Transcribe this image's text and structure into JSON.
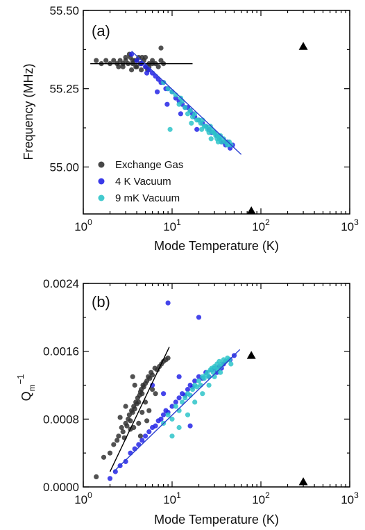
{
  "colors": {
    "exchange_gas": "#333333",
    "vacuum_4k": "#2424e6",
    "vacuum_9mk": "#2ec4c9",
    "fit_black": "#000000",
    "fit_blue": "#2b3fd0",
    "marker": "#000000",
    "axes": "#000000"
  },
  "chart_data": [
    {
      "type": "scatter",
      "panel_label": "(a)",
      "xlabel": "Mode Temperature (K)",
      "ylabel": "Frequency (MHz)",
      "xscale": "log",
      "xlim": [
        1,
        1000
      ],
      "ylim": [
        54.85,
        55.5
      ],
      "yticks": [
        "55.00",
        "55.25",
        "55.50"
      ],
      "xticks": [
        {
          "base": "10",
          "exp": "0"
        },
        {
          "base": "10",
          "exp": "1"
        },
        {
          "base": "10",
          "exp": "2"
        },
        {
          "base": "10",
          "exp": "3"
        }
      ],
      "legend_position": "lower-left",
      "series": [
        {
          "name": "Exchange Gas",
          "color_key": "exchange_gas",
          "x": [
            1.4,
            1.6,
            1.8,
            2.0,
            2.2,
            2.4,
            2.6,
            2.8,
            3.0,
            3.2,
            3.4,
            3.6,
            3.8,
            4.0,
            4.2,
            4.5,
            4.8,
            5.1,
            5.5,
            6.0,
            6.5,
            7.0,
            7.5,
            8.0,
            2.5,
            3.0,
            3.5,
            4.0,
            4.5,
            5.0,
            5.5,
            6.0,
            3.3,
            3.9,
            4.6,
            5.3,
            2.8,
            3.6,
            4.4,
            7.5
          ],
          "y": [
            55.34,
            55.33,
            55.34,
            55.33,
            55.34,
            55.33,
            55.34,
            55.32,
            55.34,
            55.33,
            55.35,
            55.33,
            55.34,
            55.32,
            55.35,
            55.33,
            55.34,
            55.32,
            55.33,
            55.34,
            55.33,
            55.32,
            55.34,
            55.33,
            55.32,
            55.35,
            55.31,
            55.34,
            55.31,
            55.35,
            55.32,
            55.33,
            55.36,
            55.32,
            55.35,
            55.31,
            55.33,
            55.34,
            55.33,
            55.38
          ]
        },
        {
          "name": "4 K Vacuum",
          "color_key": "vacuum_4k",
          "x": [
            3.5,
            4.0,
            4.5,
            5.0,
            5.5,
            6.0,
            6.5,
            7.0,
            7.5,
            8.0,
            8.5,
            9.0,
            10,
            11,
            12,
            13,
            14,
            15,
            16,
            17,
            18,
            20,
            22,
            24,
            26,
            28,
            30,
            32,
            34,
            36,
            38,
            40,
            42,
            45,
            48,
            5.2,
            6.8,
            8.8,
            12.5,
            19
          ],
          "y": [
            55.36,
            55.34,
            55.33,
            55.32,
            55.31,
            55.3,
            55.29,
            55.28,
            55.27,
            55.27,
            55.25,
            55.25,
            55.24,
            55.22,
            55.21,
            55.2,
            55.19,
            55.19,
            55.18,
            55.17,
            55.16,
            55.15,
            55.14,
            55.13,
            55.12,
            55.11,
            55.11,
            55.1,
            55.09,
            55.08,
            55.08,
            55.07,
            55.08,
            55.06,
            55.07,
            55.3,
            55.24,
            55.2,
            55.17,
            55.12
          ]
        },
        {
          "name": "9 mK Vacuum",
          "color_key": "vacuum_9mk",
          "x": [
            8,
            9,
            10,
            11,
            12,
            13,
            14,
            15,
            16,
            17,
            18,
            19,
            20,
            21,
            22,
            23,
            24,
            25,
            26,
            27,
            28,
            29,
            30,
            31,
            32,
            33,
            34,
            35,
            36,
            38,
            40,
            42,
            44,
            46,
            9.5,
            12.5,
            16.5,
            21.5,
            27.5,
            33
          ],
          "y": [
            55.27,
            55.25,
            55.24,
            55.23,
            55.2,
            55.21,
            55.19,
            55.17,
            55.18,
            55.16,
            55.17,
            55.15,
            55.15,
            55.14,
            55.15,
            55.13,
            55.13,
            55.12,
            55.11,
            55.13,
            55.12,
            55.11,
            55.11,
            55.1,
            55.09,
            55.1,
            55.09,
            55.1,
            55.08,
            55.09,
            55.08,
            55.07,
            55.08,
            55.07,
            55.12,
            55.22,
            55.14,
            55.12,
            55.09,
            55.08
          ]
        }
      ],
      "fits": [
        {
          "color_key": "fit_black",
          "x": [
            1.2,
            17
          ],
          "y": [
            55.33,
            55.33
          ]
        },
        {
          "color_key": "fit_blue",
          "x": [
            3.5,
            60
          ],
          "y": [
            55.37,
            55.04
          ]
        }
      ],
      "markers": [
        {
          "shape": "triangle",
          "x": 300,
          "y": 55.385
        },
        {
          "shape": "triangle",
          "x": 78,
          "y": 54.86
        }
      ]
    },
    {
      "type": "scatter",
      "panel_label": "(b)",
      "xlabel": "Mode Temperature (K)",
      "ylabel_base": "Q",
      "ylabel_sub": "m",
      "ylabel_sup": "−1",
      "xscale": "log",
      "xlim": [
        1,
        1000
      ],
      "ylim": [
        0,
        0.0024
      ],
      "yticks": [
        "0.0000",
        "0.0008",
        "0.0016",
        "0.0024"
      ],
      "xticks": [
        {
          "base": "10",
          "exp": "0"
        },
        {
          "base": "10",
          "exp": "1"
        },
        {
          "base": "10",
          "exp": "2"
        },
        {
          "base": "10",
          "exp": "3"
        }
      ],
      "series": [
        {
          "name": "Exchange Gas",
          "color_key": "exchange_gas",
          "x": [
            1.4,
            1.7,
            2.0,
            2.2,
            2.4,
            2.5,
            2.7,
            2.8,
            3.0,
            3.1,
            3.2,
            3.3,
            3.4,
            3.5,
            3.6,
            3.7,
            3.8,
            3.9,
            4.0,
            4.1,
            4.2,
            4.3,
            4.4,
            4.5,
            4.6,
            4.7,
            4.8,
            5.0,
            5.2,
            5.4,
            5.6,
            5.8,
            6.0,
            6.4,
            6.8,
            7.2,
            7.6,
            8.0,
            8.5,
            9.0,
            2.6,
            3.0,
            3.4,
            3.8,
            4.2,
            4.6,
            5.0,
            5.5,
            6.0,
            3.6,
            4.4,
            5.2,
            6.5,
            2.9,
            3.7
          ],
          "y": [
            0.00012,
            0.00035,
            0.0004,
            0.0005,
            0.00055,
            0.0006,
            0.0007,
            0.00065,
            0.00075,
            0.00072,
            0.0008,
            0.00085,
            0.00078,
            0.0009,
            0.00088,
            0.00095,
            0.00092,
            0.001,
            0.00098,
            0.00105,
            0.001,
            0.00108,
            0.00112,
            0.00115,
            0.0011,
            0.0012,
            0.00118,
            0.00122,
            0.00125,
            0.0013,
            0.00128,
            0.00135,
            0.00132,
            0.0014,
            0.00138,
            0.00142,
            0.00145,
            0.00148,
            0.0015,
            0.00152,
            0.00082,
            0.00095,
            0.00068,
            0.0012,
            0.00075,
            0.00088,
            0.001,
            0.0009,
            0.00115,
            0.0013,
            0.0006,
            0.00078,
            0.0011,
            0.00058,
            0.0007
          ]
        },
        {
          "name": "4 K Vacuum",
          "color_key": "vacuum_4k",
          "x": [
            2.0,
            2.3,
            2.6,
            3.0,
            3.4,
            3.8,
            4.2,
            4.6,
            5.0,
            5.5,
            6.0,
            6.5,
            7.0,
            7.5,
            8.0,
            8.5,
            9.0,
            10,
            11,
            12,
            13,
            14,
            15,
            16,
            17,
            18,
            20,
            22,
            24,
            26,
            28,
            30,
            32,
            34,
            36,
            38,
            40,
            45,
            50,
            9.0,
            20,
            6.0,
            8.0,
            12,
            16
          ],
          "y": [
            0.0001,
            0.00018,
            0.00025,
            0.0003,
            0.0004,
            0.00045,
            0.0005,
            0.00055,
            0.0006,
            0.00065,
            0.0007,
            0.00072,
            0.00078,
            0.0008,
            0.00085,
            0.0009,
            0.00088,
            0.00095,
            0.001,
            0.00105,
            0.0011,
            0.00108,
            0.00115,
            0.0012,
            0.00118,
            0.00125,
            0.0013,
            0.00128,
            0.00135,
            0.0013,
            0.00138,
            0.0014,
            0.00135,
            0.00142,
            0.0014,
            0.00145,
            0.00148,
            0.0015,
            0.00155,
            0.00217,
            0.002,
            0.0012,
            0.0011,
            0.0013,
            0.00072
          ]
        },
        {
          "name": "9 mK Vacuum",
          "color_key": "vacuum_9mk",
          "x": [
            8,
            9,
            10,
            11,
            12,
            13,
            14,
            15,
            16,
            17,
            18,
            19,
            20,
            21,
            22,
            23,
            24,
            25,
            26,
            27,
            28,
            29,
            30,
            31,
            32,
            33,
            34,
            35,
            36,
            38,
            40,
            42,
            44,
            46,
            10,
            12,
            15,
            18,
            22,
            26,
            30,
            35
          ],
          "y": [
            0.00075,
            0.00085,
            0.0008,
            0.00095,
            0.0009,
            0.001,
            0.00105,
            0.0011,
            0.00108,
            0.00115,
            0.0012,
            0.00118,
            0.00125,
            0.0012,
            0.0013,
            0.00128,
            0.00132,
            0.00135,
            0.0013,
            0.00138,
            0.0014,
            0.00135,
            0.00142,
            0.0014,
            0.00145,
            0.00138,
            0.00148,
            0.00142,
            0.00145,
            0.0015,
            0.00148,
            0.00152,
            0.0015,
            0.00145,
            0.0006,
            0.0007,
            0.00085,
            0.001,
            0.0011,
            0.0012,
            0.0013,
            0.00135
          ]
        }
      ],
      "fits": [
        {
          "color_key": "fit_black",
          "x": [
            2.0,
            9.3
          ],
          "y": [
            0.00018,
            0.00165
          ]
        },
        {
          "color_key": "fit_blue",
          "x": [
            2.2,
            58
          ],
          "y": [
            0.00018,
            0.00162
          ]
        }
      ],
      "markers": [
        {
          "shape": "triangle",
          "x": 78,
          "y": 0.00155
        },
        {
          "shape": "triangle",
          "x": 300,
          "y": 6e-05
        }
      ]
    }
  ]
}
